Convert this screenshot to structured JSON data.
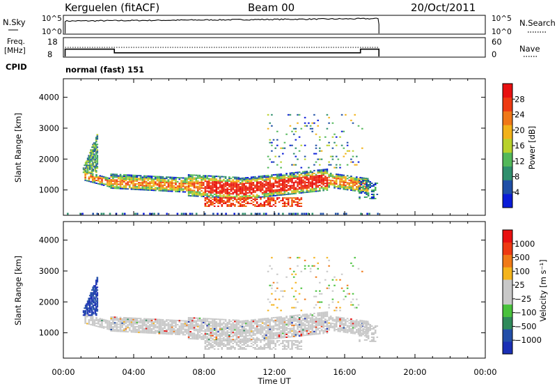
{
  "header": {
    "station": "Kerguelen  (fitACF)",
    "beam": "Beam 00",
    "date": "20/Oct/2011"
  },
  "side_labels": {
    "nsky": "N.Sky",
    "freq_line1": "Freq.",
    "freq_line2": "[MHz]",
    "cpid": "CPID",
    "nsearch": "N.Search",
    "nave": "Nave"
  },
  "cpid_text": "normal (fast) 151",
  "colors": {
    "frame": "#000000",
    "power_scale": [
      "#0a1cd8",
      "#1f4fa6",
      "#2f8f6d",
      "#53b85a",
      "#b8d12b",
      "#f2b21a",
      "#f07818",
      "#ee3a12",
      "#e81010"
    ],
    "velocity_scale": [
      "#1a2fb5",
      "#234fa8",
      "#2f8a5a",
      "#49c23c",
      "#c8c8c8",
      "#c8c8c8",
      "#f4b41c",
      "#f07a18",
      "#ee3a12",
      "#e81010"
    ]
  },
  "chart_data": [
    {
      "type": "line",
      "name": "nsky-nsearch",
      "ylabel_left": "N.Sky",
      "ylabel_right": "N.Search",
      "left_ticks": [
        "10^5",
        "10^0"
      ],
      "right_ticks": [
        "10^5",
        "10^0"
      ],
      "x_range_hours": [
        0,
        24
      ],
      "data_span_hours": [
        0.1,
        17.95
      ],
      "series": [
        {
          "label": "N.Sky",
          "style": "solid",
          "note": "near 10^5 throughout"
        },
        {
          "label": "N.Search",
          "style": "dotted"
        }
      ]
    },
    {
      "type": "line",
      "name": "frequency-nave",
      "ylabel_left": "Freq. [MHz]",
      "ylabel_right": "Nave",
      "left_ticks": [
        "18",
        "8"
      ],
      "right_ticks": [
        "60",
        "0"
      ],
      "freq_steps": [
        {
          "from_h": 0.1,
          "to_h": 2.9,
          "mhz": 12
        },
        {
          "from_h": 2.9,
          "to_h": 16.9,
          "mhz": 10
        },
        {
          "from_h": 16.9,
          "to_h": 17.95,
          "mhz": 12
        }
      ]
    },
    {
      "type": "heatmap",
      "name": "power",
      "ylabel": "Slant Range [km]",
      "yticks": [
        1000,
        2000,
        3000,
        4000
      ],
      "ylim": [
        180,
        4600
      ],
      "colorbar_label": "Power [dB]",
      "colorbar_ticks": [
        28,
        24,
        20,
        16,
        12,
        8,
        4
      ],
      "colorbar_range": [
        0,
        30
      ]
    },
    {
      "type": "heatmap",
      "name": "velocity",
      "ylabel": "Slant Range [km]",
      "yticks": [
        1000,
        2000,
        3000,
        4000
      ],
      "ylim": [
        180,
        4600
      ],
      "colorbar_label": "Velocity [m s⁻¹]",
      "colorbar_ticks": [
        "1000",
        "500",
        "100",
        "25",
        "−25",
        "−100",
        "−500",
        "−1000"
      ],
      "xticks": [
        "00:00",
        "04:00",
        "08:00",
        "12:00",
        "16:00",
        "20:00",
        "00:00"
      ],
      "xlabel": "Time UT"
    }
  ]
}
